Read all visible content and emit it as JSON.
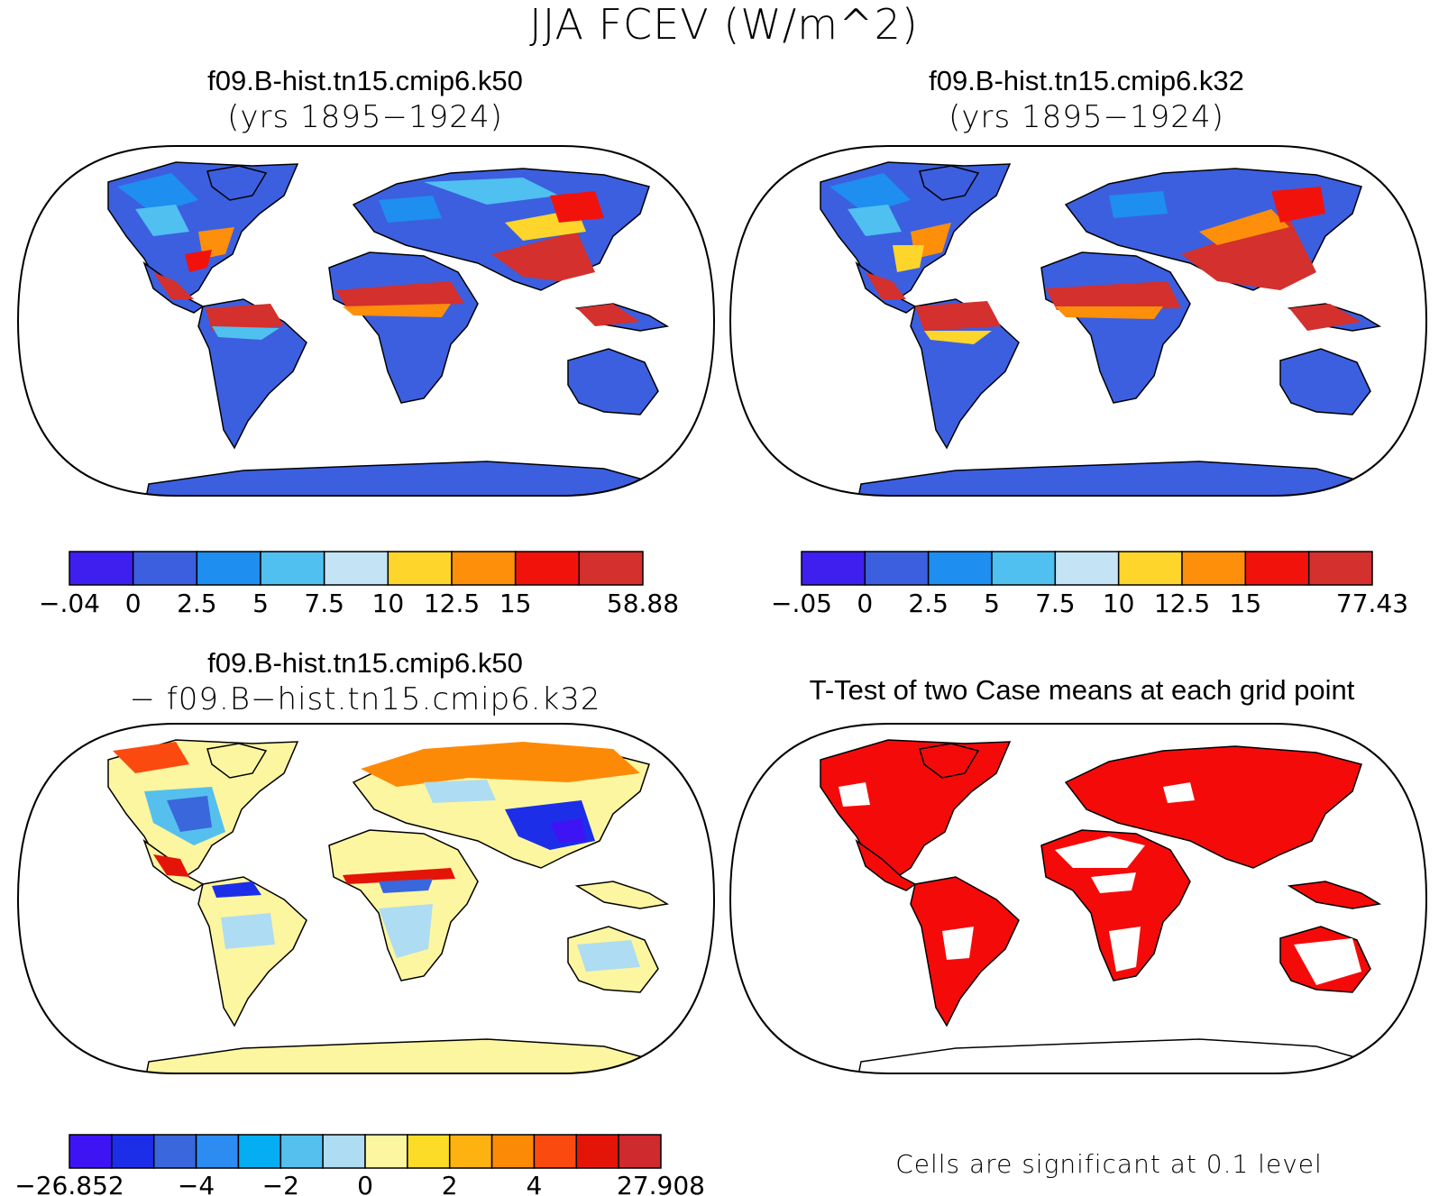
{
  "main_title": "JJA FCEV (W/m^2)",
  "panels": [
    {
      "id": "k50",
      "title": "f09.B-hist.tn15.cmip6.k50",
      "subtitle": "(yrs 1895−1924)",
      "colorbar": {
        "colors": [
          "#3f1ff0",
          "#3c5fe0",
          "#1e8ef0",
          "#50c0f0",
          "#c4e4f6",
          "#fdd52b",
          "#fd8f0a",
          "#f2120c",
          "#d3302e"
        ],
        "labels": [
          "−.04",
          "0",
          "2.5",
          "5",
          "7.5",
          "10",
          "12.5",
          "15",
          "58.88"
        ]
      }
    },
    {
      "id": "k32",
      "title": "f09.B-hist.tn15.cmip6.k32",
      "subtitle": "(yrs 1895−1924)",
      "colorbar": {
        "colors": [
          "#3f1ff0",
          "#3c5fe0",
          "#1e8ef0",
          "#50c0f0",
          "#c4e4f6",
          "#fdd52b",
          "#fd8f0a",
          "#f2120c",
          "#d3302e"
        ],
        "labels": [
          "−.05",
          "0",
          "2.5",
          "5",
          "7.5",
          "10",
          "12.5",
          "15",
          "77.43"
        ]
      }
    },
    {
      "id": "diff",
      "title": "f09.B-hist.tn15.cmip6.k50",
      "subtitle": "− f09.B−hist.tn15.cmip6.k32",
      "colorbar": {
        "colors": [
          "#3f14f4",
          "#1c2ee8",
          "#3a67dc",
          "#2d8cf2",
          "#05aef2",
          "#55c0ee",
          "#aedcf2",
          "#fdf6a0",
          "#fddc28",
          "#fdb212",
          "#fd8a06",
          "#fb4a10",
          "#e41408",
          "#cf2a2e"
        ],
        "labels": [
          "−26.852",
          "−4",
          "−2",
          "0",
          "2",
          "4",
          "27.908"
        ]
      }
    },
    {
      "id": "ttest",
      "title": "T-Test of two Case means at each grid point",
      "note": "Cells are significant at 0.1 level"
    }
  ],
  "colors": {
    "frame": "#000000",
    "significant": "#f50a0a",
    "high_mid": "#f2120c",
    "low": "#3c5fe0"
  }
}
